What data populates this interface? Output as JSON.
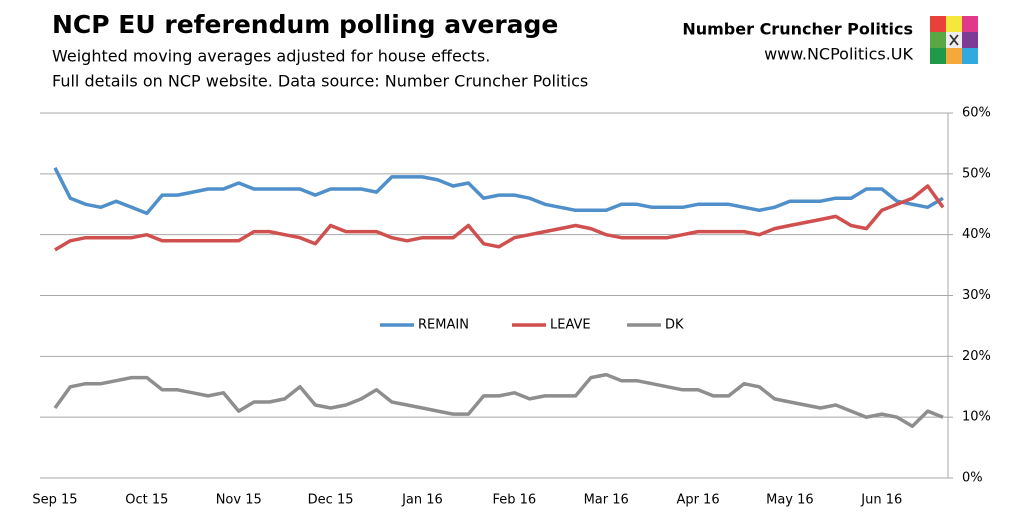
{
  "chart_data": {
    "type": "line",
    "title": "NCP EU referendum polling average",
    "subtitle": [
      "Weighted moving averages adjusted for house effects.",
      "Full details on NCP website. Data source: Number Cruncher Politics"
    ],
    "brand": "Number Cruncher Politics",
    "website": "www.NCPolitics.UK",
    "categories": [
      "Sep 15",
      null,
      null,
      null,
      null,
      null,
      "Oct 15",
      null,
      null,
      null,
      null,
      null,
      "Nov 15",
      null,
      null,
      null,
      null,
      null,
      "Dec 15",
      null,
      null,
      null,
      null,
      null,
      "Jan 16",
      null,
      null,
      null,
      null,
      null,
      "Feb 16",
      null,
      null,
      null,
      null,
      null,
      "Mar 16",
      null,
      null,
      null,
      null,
      null,
      "Apr 16",
      null,
      null,
      null,
      null,
      null,
      "May 16",
      null,
      null,
      null,
      null,
      null,
      "Jun 16",
      null,
      null,
      null,
      null
    ],
    "series": [
      {
        "name": "REMAIN",
        "color": "#4f8fca",
        "values": [
          51,
          46,
          45,
          44.5,
          45.5,
          44.5,
          43.5,
          46.5,
          46.5,
          47,
          47.5,
          47.5,
          48.5,
          47.5,
          47.5,
          47.5,
          47.5,
          46.5,
          47.5,
          47.5,
          47.5,
          47,
          49.5,
          49.5,
          49.5,
          49,
          48,
          48.5,
          46,
          46.5,
          46.5,
          46,
          45,
          44.5,
          44,
          44,
          44,
          45,
          45,
          44.5,
          44.5,
          44.5,
          45,
          45,
          45,
          44.5,
          44,
          44.5,
          45.5,
          45.5,
          45.5,
          46,
          46,
          47.5,
          47.5,
          45.5,
          45,
          44.5,
          46
        ]
      },
      {
        "name": "LEAVE",
        "color": "#d0504f",
        "values": [
          37.5,
          39,
          39.5,
          39.5,
          39.5,
          39.5,
          40,
          39,
          39,
          39,
          39,
          39,
          39,
          40.5,
          40.5,
          40,
          39.5,
          38.5,
          41.5,
          40.5,
          40.5,
          40.5,
          39.5,
          39,
          39.5,
          39.5,
          39.5,
          41.5,
          38.5,
          38,
          39.5,
          40,
          40.5,
          41,
          41.5,
          41,
          40,
          39.5,
          39.5,
          39.5,
          39.5,
          40,
          40.5,
          40.5,
          40.5,
          40.5,
          40,
          41,
          41.5,
          42,
          42.5,
          43,
          41.5,
          41,
          44,
          45,
          46,
          48,
          44.5
        ]
      },
      {
        "name": "DK",
        "color": "#8e8e8e",
        "values": [
          11.5,
          15,
          15.5,
          15.5,
          16,
          16.5,
          16.5,
          14.5,
          14.5,
          14,
          13.5,
          14,
          11,
          12.5,
          12.5,
          13,
          15,
          12,
          11.5,
          12,
          13,
          14.5,
          12.5,
          12,
          11.5,
          11,
          10.5,
          10.5,
          13.5,
          13.5,
          14,
          13,
          13.5,
          13.5,
          13.5,
          16.5,
          17,
          16,
          16,
          15.5,
          15,
          14.5,
          14.5,
          13.5,
          13.5,
          15.5,
          15,
          13,
          12.5,
          12,
          11.5,
          12,
          11,
          10,
          10.5,
          10,
          8.5,
          11,
          10
        ]
      }
    ],
    "ylim": [
      0,
      60
    ],
    "yticks": [
      {
        "value": 0,
        "label": "0%"
      },
      {
        "value": 10,
        "label": "10%"
      },
      {
        "value": 20,
        "label": "20%"
      },
      {
        "value": 30,
        "label": "30%"
      },
      {
        "value": 40,
        "label": "40%"
      },
      {
        "value": 50,
        "label": "50%"
      },
      {
        "value": 60,
        "label": "60%"
      }
    ],
    "grid": true,
    "legend": "center"
  }
}
